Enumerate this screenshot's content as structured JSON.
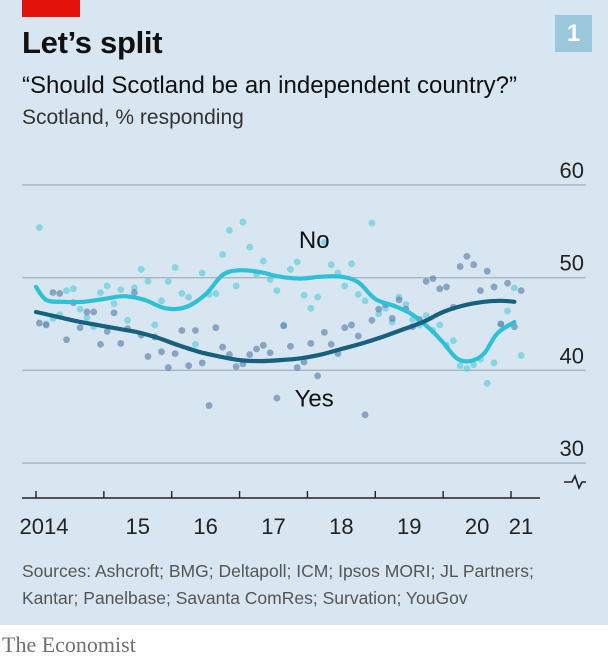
{
  "header": {
    "title": "Let’s split",
    "subtitle": "“Should Scotland be an independent country?”",
    "unit": "Scotland, % responding",
    "chart_number": "1"
  },
  "footer": {
    "sources_line1": "Sources: Ashcroft; BMG; Deltapoll; ICM; Ipsos MORI; JL Partners;",
    "sources_line2": "Kantar; Panelbase; Savanta ComRes; Survation; YouGov",
    "brand": "The Economist"
  },
  "colors": {
    "background": "#d7e6f0",
    "no_line": "#2ec0d4",
    "yes_line": "#17607e",
    "no_dots": "#5ccbdc",
    "yes_dots": "#5d7fab",
    "accent_red": "#e3120b"
  },
  "chart_data": {
    "type": "line",
    "title": "Let’s split",
    "subtitle": "“Should Scotland be an independent country?”",
    "ylabel": "Scotland, % responding",
    "xlim": [
      2014.0,
      2021.3
    ],
    "ylim": [
      30,
      60
    ],
    "y_axis_break": true,
    "y_ticks": [
      30,
      40,
      50,
      60
    ],
    "y_tick_labels": [
      "30",
      "40",
      "50",
      "60"
    ],
    "x_tick_labels": [
      {
        "x": 2014.0,
        "label": "2014"
      },
      {
        "x": 2015.0,
        "label": "15"
      },
      {
        "x": 2016.0,
        "label": "16"
      },
      {
        "x": 2017.0,
        "label": "17"
      },
      {
        "x": 2018.0,
        "label": "18"
      },
      {
        "x": 2019.0,
        "label": "19"
      },
      {
        "x": 2020.0,
        "label": "20"
      },
      {
        "x": 2021.0,
        "label": "21"
      }
    ],
    "grid": true,
    "series": [
      {
        "name": "No",
        "color": "#2ec0d4",
        "trend": [
          [
            2014.0,
            49.0
          ],
          [
            2014.15,
            47.6
          ],
          [
            2014.4,
            47.4
          ],
          [
            2014.7,
            47.4
          ],
          [
            2015.0,
            47.7
          ],
          [
            2015.3,
            48.0
          ],
          [
            2015.6,
            47.6
          ],
          [
            2015.9,
            46.7
          ],
          [
            2016.2,
            46.8
          ],
          [
            2016.5,
            48.2
          ],
          [
            2016.75,
            50.3
          ],
          [
            2017.0,
            50.8
          ],
          [
            2017.3,
            50.6
          ],
          [
            2017.6,
            50.1
          ],
          [
            2017.9,
            49.9
          ],
          [
            2018.2,
            50.1
          ],
          [
            2018.5,
            50.1
          ],
          [
            2018.75,
            49.5
          ],
          [
            2019.0,
            47.7
          ],
          [
            2019.3,
            46.9
          ],
          [
            2019.55,
            46.0
          ],
          [
            2019.8,
            44.5
          ],
          [
            2020.0,
            43.0
          ],
          [
            2020.2,
            41.3
          ],
          [
            2020.4,
            41.0
          ],
          [
            2020.6,
            41.8
          ],
          [
            2020.8,
            44.0
          ],
          [
            2021.05,
            45.2
          ]
        ],
        "polls": [
          [
            2014.05,
            55.4
          ],
          [
            2014.15,
            45.0
          ],
          [
            2014.25,
            45.6
          ],
          [
            2014.35,
            46.0
          ],
          [
            2014.45,
            48.6
          ],
          [
            2014.55,
            48.8
          ],
          [
            2014.65,
            46.6
          ],
          [
            2014.75,
            45.7
          ],
          [
            2014.85,
            44.7
          ],
          [
            2014.95,
            48.4
          ],
          [
            2015.05,
            49.1
          ],
          [
            2015.15,
            47.2
          ],
          [
            2015.25,
            48.7
          ],
          [
            2015.35,
            45.4
          ],
          [
            2015.45,
            48.9
          ],
          [
            2015.55,
            50.9
          ],
          [
            2015.65,
            49.6
          ],
          [
            2015.75,
            44.9
          ],
          [
            2015.85,
            47.5
          ],
          [
            2015.95,
            49.6
          ],
          [
            2016.05,
            51.1
          ],
          [
            2016.15,
            48.3
          ],
          [
            2016.25,
            47.9
          ],
          [
            2016.35,
            42.8
          ],
          [
            2016.45,
            50.5
          ],
          [
            2016.55,
            48.2
          ],
          [
            2016.65,
            48.3
          ],
          [
            2016.75,
            52.5
          ],
          [
            2016.85,
            55.1
          ],
          [
            2016.95,
            49.1
          ],
          [
            2017.05,
            56.0
          ],
          [
            2017.15,
            53.3
          ],
          [
            2017.25,
            50.4
          ],
          [
            2017.35,
            51.8
          ],
          [
            2017.45,
            49.8
          ],
          [
            2017.55,
            48.6
          ],
          [
            2017.65,
            44.9
          ],
          [
            2017.75,
            50.9
          ],
          [
            2017.85,
            51.7
          ],
          [
            2017.95,
            48.1
          ],
          [
            2018.05,
            46.7
          ],
          [
            2018.15,
            47.9
          ],
          [
            2018.25,
            53.8
          ],
          [
            2018.35,
            51.4
          ],
          [
            2018.45,
            50.5
          ],
          [
            2018.55,
            49.1
          ],
          [
            2018.65,
            51.5
          ],
          [
            2018.75,
            48.2
          ],
          [
            2018.85,
            47.5
          ],
          [
            2018.95,
            55.9
          ],
          [
            2019.05,
            46.1
          ],
          [
            2019.15,
            46.7
          ],
          [
            2019.25,
            45.2
          ],
          [
            2019.35,
            47.9
          ],
          [
            2019.45,
            47.1
          ],
          [
            2019.55,
            45.5
          ],
          [
            2019.65,
            44.9
          ],
          [
            2019.75,
            45.9
          ],
          [
            2019.85,
            44.3
          ],
          [
            2019.95,
            44.9
          ],
          [
            2020.05,
            42.7
          ],
          [
            2020.15,
            43.2
          ],
          [
            2020.25,
            40.5
          ],
          [
            2020.35,
            40.2
          ],
          [
            2020.45,
            40.6
          ],
          [
            2020.55,
            41.2
          ],
          [
            2020.65,
            38.6
          ],
          [
            2020.75,
            40.8
          ],
          [
            2020.85,
            45.0
          ],
          [
            2020.95,
            46.4
          ],
          [
            2021.05,
            48.9
          ],
          [
            2021.15,
            41.6
          ]
        ]
      },
      {
        "name": "Yes",
        "color": "#17607e",
        "trend": [
          [
            2014.0,
            46.3
          ],
          [
            2014.3,
            45.8
          ],
          [
            2014.6,
            45.3
          ],
          [
            2014.9,
            44.9
          ],
          [
            2015.2,
            44.5
          ],
          [
            2015.5,
            44.1
          ],
          [
            2015.8,
            43.5
          ],
          [
            2016.1,
            42.7
          ],
          [
            2016.4,
            42.0
          ],
          [
            2016.7,
            41.5
          ],
          [
            2017.0,
            41.1
          ],
          [
            2017.3,
            41.0
          ],
          [
            2017.6,
            41.1
          ],
          [
            2017.9,
            41.3
          ],
          [
            2018.2,
            41.7
          ],
          [
            2018.5,
            42.3
          ],
          [
            2018.8,
            42.9
          ],
          [
            2019.1,
            43.6
          ],
          [
            2019.4,
            44.4
          ],
          [
            2019.7,
            45.2
          ],
          [
            2020.0,
            46.3
          ],
          [
            2020.3,
            47.0
          ],
          [
            2020.6,
            47.4
          ],
          [
            2020.85,
            47.5
          ],
          [
            2021.05,
            47.4
          ]
        ],
        "polls": [
          [
            2014.05,
            45.1
          ],
          [
            2014.15,
            44.9
          ],
          [
            2014.25,
            48.4
          ],
          [
            2014.35,
            48.3
          ],
          [
            2014.45,
            43.3
          ],
          [
            2014.55,
            47.3
          ],
          [
            2014.65,
            44.6
          ],
          [
            2014.75,
            46.3
          ],
          [
            2014.85,
            46.3
          ],
          [
            2014.95,
            42.8
          ],
          [
            2015.05,
            44.2
          ],
          [
            2015.15,
            46.2
          ],
          [
            2015.25,
            42.9
          ],
          [
            2015.35,
            44.5
          ],
          [
            2015.45,
            48.4
          ],
          [
            2015.55,
            43.8
          ],
          [
            2015.65,
            41.5
          ],
          [
            2015.75,
            43.6
          ],
          [
            2015.85,
            42.0
          ],
          [
            2015.95,
            40.3
          ],
          [
            2016.05,
            41.8
          ],
          [
            2016.15,
            44.3
          ],
          [
            2016.25,
            40.5
          ],
          [
            2016.35,
            44.3
          ],
          [
            2016.45,
            40.8
          ],
          [
            2016.55,
            36.2
          ],
          [
            2016.65,
            44.6
          ],
          [
            2016.75,
            42.5
          ],
          [
            2016.85,
            41.7
          ],
          [
            2016.95,
            40.4
          ],
          [
            2017.05,
            40.7
          ],
          [
            2017.15,
            41.7
          ],
          [
            2017.25,
            42.3
          ],
          [
            2017.35,
            42.7
          ],
          [
            2017.45,
            41.9
          ],
          [
            2017.55,
            37.0
          ],
          [
            2017.65,
            44.8
          ],
          [
            2017.75,
            42.6
          ],
          [
            2017.85,
            40.3
          ],
          [
            2017.95,
            40.9
          ],
          [
            2018.05,
            42.9
          ],
          [
            2018.15,
            39.4
          ],
          [
            2018.25,
            44.1
          ],
          [
            2018.35,
            42.8
          ],
          [
            2018.45,
            41.8
          ],
          [
            2018.55,
            44.6
          ],
          [
            2018.65,
            44.9
          ],
          [
            2018.75,
            43.7
          ],
          [
            2018.85,
            35.2
          ],
          [
            2018.95,
            45.4
          ],
          [
            2019.05,
            46.6
          ],
          [
            2019.15,
            47.1
          ],
          [
            2019.25,
            45.6
          ],
          [
            2019.35,
            47.6
          ],
          [
            2019.45,
            46.6
          ],
          [
            2019.55,
            44.7
          ],
          [
            2019.65,
            45.5
          ],
          [
            2019.75,
            49.6
          ],
          [
            2019.85,
            49.9
          ],
          [
            2019.95,
            48.8
          ],
          [
            2020.05,
            49.0
          ],
          [
            2020.15,
            46.8
          ],
          [
            2020.25,
            51.2
          ],
          [
            2020.35,
            52.3
          ],
          [
            2020.45,
            51.4
          ],
          [
            2020.55,
            48.6
          ],
          [
            2020.65,
            50.7
          ],
          [
            2020.75,
            49.0
          ],
          [
            2020.85,
            45.0
          ],
          [
            2020.95,
            49.4
          ],
          [
            2021.05,
            44.7
          ],
          [
            2021.15,
            48.6
          ]
        ]
      }
    ],
    "annotations": [
      {
        "text": "No",
        "series": "No"
      },
      {
        "text": "Yes",
        "series": "Yes"
      }
    ]
  }
}
